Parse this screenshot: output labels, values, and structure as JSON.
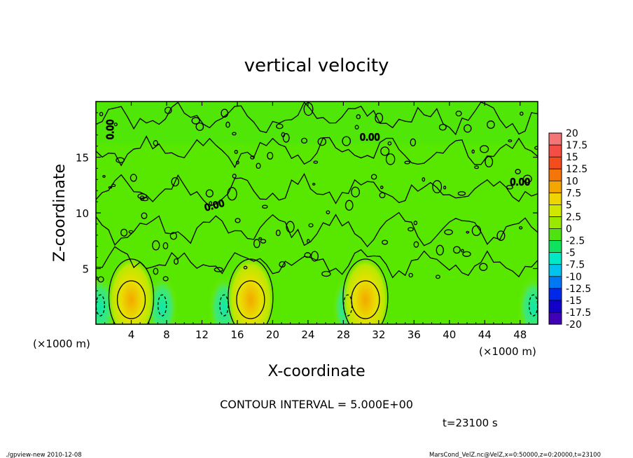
{
  "chart_data": {
    "type": "heatmap",
    "title": "vertical velocity",
    "xlabel": "X-coordinate",
    "ylabel": "Z-coordinate",
    "x_unit_label": "(×1000 m)",
    "x_unit_label_bottom": "(×1000 m)",
    "xlim": [
      0,
      50
    ],
    "ylim": [
      0,
      20
    ],
    "x_ticks": [
      "4",
      "8",
      "12",
      "16",
      "20",
      "24",
      "28",
      "32",
      "36",
      "40",
      "44",
      "48"
    ],
    "y_ticks": [
      "5",
      "10",
      "15"
    ],
    "colorbar_labels": [
      "20",
      "17.5",
      "15",
      "12.5",
      "10",
      "7.5",
      "5",
      "2.5",
      "0",
      "-2.5",
      "-5",
      "-7.5",
      "-10",
      "-12.5",
      "-15",
      "-17.5",
      "-20"
    ],
    "colorbar_colors": [
      "#f48a8a",
      "#f46060",
      "#f43a2a",
      "#f46010",
      "#f48a00",
      "#f4c000",
      "#e8e800",
      "#b8e800",
      "#7ce800",
      "#20dc20",
      "#00e8a0",
      "#00e8e8",
      "#00a0f4",
      "#0050f4",
      "#0000e0",
      "#2000b0",
      "#6000c0"
    ],
    "contour_labels": [
      "0.00",
      "0.00",
      "0.00",
      "0.00"
    ],
    "contour_interval_text": "CONTOUR INTERVAL = 5.000E+00",
    "time_text": "t=23100 s",
    "updraft_cores_x": [
      4,
      17.5,
      30.5
    ],
    "downdraft_x": [
      0.5,
      7.5,
      14.5,
      28.5,
      49.5
    ]
  },
  "footer": {
    "left": "./gpview-new   2010-12-08",
    "right": "MarsCond_VelZ.nc@VelZ,x=0:50000,z=0:20000,t=23100"
  }
}
